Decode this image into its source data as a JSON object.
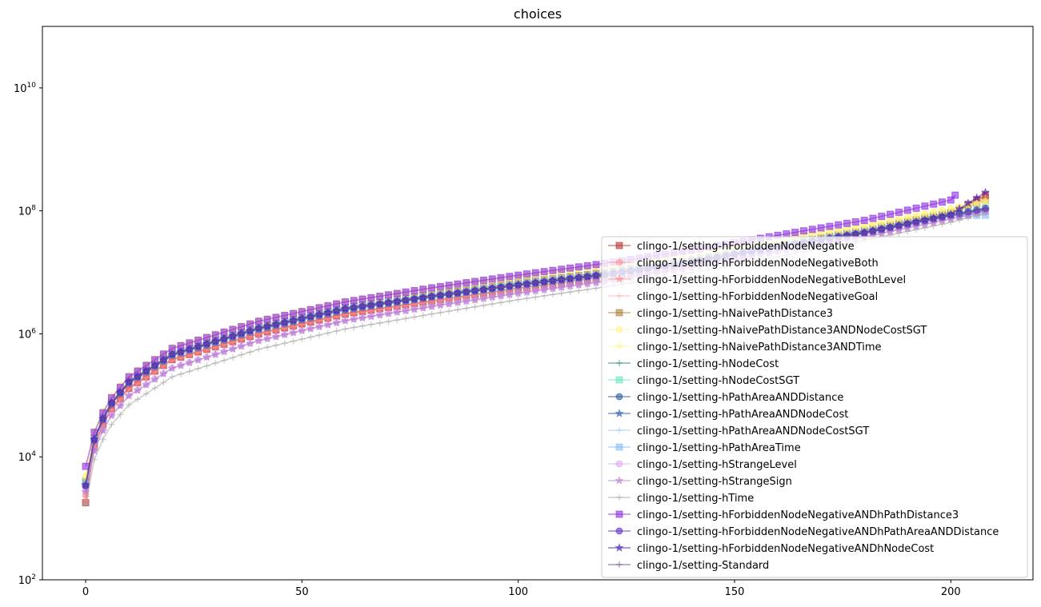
{
  "chart_data": {
    "type": "line",
    "title": "choices",
    "xlabel": "",
    "ylabel": "",
    "yscale": "log",
    "xlim": [
      -10,
      219
    ],
    "ylim": [
      100,
      100000000000
    ],
    "x_ticks": [
      0,
      50,
      100,
      150,
      200
    ],
    "x_tick_labels": [
      "0",
      "50",
      "100",
      "150",
      "200"
    ],
    "y_ticks": [
      100,
      10000,
      1000000,
      100000000,
      10000000000
    ],
    "y_tick_labels": [
      {
        "base": "10",
        "exp": "2"
      },
      {
        "base": "10",
        "exp": "4"
      },
      {
        "base": "10",
        "exp": "6"
      },
      {
        "base": "10",
        "exp": "8"
      },
      {
        "base": "10",
        "exp": "10"
      }
    ],
    "grid": false,
    "legend_position": "lower-right",
    "series": [
      {
        "name": "clingo-1/setting-hForbiddenNodeNegative",
        "color": "#b22222",
        "marker": "square",
        "alpha": 0.55,
        "x": [
          0,
          2,
          5,
          10,
          20,
          40,
          60,
          80,
          100,
          120,
          140,
          160,
          180,
          200,
          208
        ],
        "values": [
          1800,
          15000,
          50000,
          130000,
          380000,
          1000000,
          2100000,
          3400000,
          5500000,
          8500000,
          14000000,
          26000000,
          45000000,
          90000000,
          180000000
        ]
      },
      {
        "name": "clingo-1/setting-hForbiddenNodeNegativeBoth",
        "color": "#ff6b6b",
        "marker": "circle",
        "alpha": 0.35,
        "x": [
          0,
          2,
          5,
          10,
          20,
          40,
          60,
          80,
          100,
          120,
          140,
          160,
          180,
          200,
          208
        ],
        "values": [
          2500,
          16000,
          52000,
          135000,
          390000,
          1050000,
          2150000,
          3450000,
          5600000,
          8600000,
          14500000,
          27000000,
          46000000,
          92000000,
          170000000
        ]
      },
      {
        "name": "clingo-1/setting-hForbiddenNodeNegativeBothLevel",
        "color": "#ff5c5c",
        "marker": "star",
        "alpha": 0.35,
        "x": [
          0,
          2,
          5,
          10,
          20,
          40,
          60,
          80,
          100,
          120,
          140,
          160,
          180,
          200,
          208
        ],
        "values": [
          2200,
          15500,
          51000,
          132000,
          385000,
          1020000,
          2120000,
          3420000,
          5550000,
          8550000,
          14200000,
          26500000,
          45500000,
          91000000,
          175000000
        ]
      },
      {
        "name": "clingo-1/setting-hForbiddenNodeNegativeGoal",
        "color": "#ff9e9e",
        "marker": "plus",
        "alpha": 0.45,
        "x": [
          0,
          2,
          5,
          10,
          20,
          40,
          60,
          80,
          100,
          120,
          140,
          160,
          180,
          200,
          208
        ],
        "values": [
          2000,
          14000,
          48000,
          125000,
          370000,
          990000,
          2050000,
          3350000,
          5450000,
          8400000,
          13800000,
          25500000,
          44000000,
          88000000,
          165000000
        ]
      },
      {
        "name": "clingo-1/setting-hNaivePathDistance3",
        "color": "#a07828",
        "marker": "square",
        "alpha": 0.55,
        "x": [
          0,
          2,
          5,
          10,
          20,
          40,
          60,
          80,
          100,
          120,
          140,
          160,
          180,
          200,
          208
        ],
        "values": [
          4000,
          20000,
          65000,
          170000,
          480000,
          1300000,
          2700000,
          4300000,
          6800000,
          10000000,
          16000000,
          28000000,
          48000000,
          95000000,
          150000000
        ]
      },
      {
        "name": "clingo-1/setting-hNaivePathDistance3ANDNodeCostSGT",
        "color": "#fff06e",
        "marker": "circle",
        "alpha": 0.45,
        "x": [
          0,
          2,
          5,
          10,
          20,
          40,
          60,
          80,
          100,
          120,
          140,
          160,
          180,
          200,
          208
        ],
        "values": [
          5000,
          26000,
          80000,
          210000,
          600000,
          1650000,
          3400000,
          5600000,
          8600000,
          13000000,
          21000000,
          35000000,
          58000000,
          110000000,
          140000000
        ]
      },
      {
        "name": "clingo-1/setting-hNaivePathDistance3ANDTime",
        "color": "#fff488",
        "marker": "star",
        "alpha": 0.45,
        "x": [
          0,
          2,
          5,
          10,
          20,
          40,
          60,
          80,
          100,
          120,
          140,
          160,
          180,
          200,
          208
        ],
        "values": [
          4800,
          25000,
          78000,
          205000,
          590000,
          1620000,
          3350000,
          5500000,
          8500000,
          12800000,
          20500000,
          34000000,
          57000000,
          108000000,
          145000000
        ]
      },
      {
        "name": "clingo-1/setting-hNodeCost",
        "color": "#2e8b6e",
        "marker": "plus",
        "alpha": 0.6,
        "x": [
          0,
          2,
          5,
          10,
          20,
          40,
          60,
          80,
          100,
          120,
          140,
          160,
          180,
          200,
          208
        ],
        "values": [
          3500,
          19000,
          60000,
          160000,
          450000,
          1200000,
          2500000,
          4000000,
          6200000,
          9200000,
          14800000,
          26000000,
          44000000,
          85000000,
          110000000
        ]
      },
      {
        "name": "clingo-1/setting-hNodeCostSGT",
        "color": "#56e0b8",
        "marker": "square",
        "alpha": 0.5,
        "x": [
          0,
          2,
          5,
          10,
          20,
          40,
          60,
          80,
          100,
          120,
          140,
          160,
          180,
          200,
          208
        ],
        "values": [
          3700,
          19500,
          62000,
          165000,
          460000,
          1230000,
          2550000,
          4050000,
          6300000,
          9300000,
          15000000,
          26500000,
          44500000,
          86000000,
          112000000
        ]
      },
      {
        "name": "clingo-1/setting-hPathAreaANDDistance",
        "color": "#1f4e8c",
        "marker": "circle",
        "alpha": 0.55,
        "x": [
          0,
          2,
          5,
          10,
          20,
          40,
          60,
          80,
          100,
          120,
          140,
          160,
          180,
          200,
          208
        ],
        "values": [
          3300,
          18500,
          59000,
          158000,
          445000,
          1180000,
          2450000,
          3950000,
          6100000,
          9000000,
          14500000,
          25500000,
          43000000,
          82000000,
          100000000
        ]
      },
      {
        "name": "clingo-1/setting-hPathAreaANDNodeCost",
        "color": "#2a5aa8",
        "marker": "star",
        "alpha": 0.6,
        "x": [
          0,
          2,
          5,
          10,
          20,
          40,
          60,
          80,
          100,
          120,
          140,
          160,
          180,
          200,
          208
        ],
        "values": [
          3400,
          18800,
          59500,
          159000,
          448000,
          1190000,
          2470000,
          3970000,
          6150000,
          9050000,
          14600000,
          25700000,
          43200000,
          83000000,
          105000000
        ]
      },
      {
        "name": "clingo-1/setting-hPathAreaANDNodeCostSGT",
        "color": "#8cc0f5",
        "marker": "plus",
        "alpha": 0.5,
        "x": [
          0,
          2,
          5,
          10,
          20,
          40,
          60,
          80,
          100,
          120,
          140,
          160,
          180,
          200,
          208
        ],
        "values": [
          3600,
          19200,
          61000,
          162000,
          455000,
          1210000,
          2520000,
          4020000,
          6250000,
          9250000,
          14900000,
          26200000,
          44200000,
          84000000,
          90000000
        ]
      },
      {
        "name": "clingo-1/setting-hPathAreaTime",
        "color": "#6fb4f5",
        "marker": "square",
        "alpha": 0.5,
        "x": [
          0,
          2,
          5,
          10,
          20,
          40,
          60,
          80,
          100,
          120,
          140,
          160,
          180,
          200,
          208
        ],
        "values": [
          3550,
          19100,
          60500,
          161000,
          452000,
          1205000,
          2510000,
          4010000,
          6220000,
          9220000,
          14850000,
          26100000,
          44100000,
          83500000,
          85000000
        ]
      },
      {
        "name": "clingo-1/setting-hStrangeLevel",
        "color": "#d9a0f0",
        "marker": "circle",
        "alpha": 0.5,
        "x": [
          0,
          2,
          5,
          10,
          20,
          40,
          60,
          80,
          100,
          120,
          140,
          160,
          180,
          200,
          208
        ],
        "values": [
          2800,
          13000,
          40000,
          100000,
          280000,
          780000,
          1650000,
          2800000,
          4600000,
          7200000,
          12000000,
          22000000,
          38000000,
          75000000,
          95000000
        ]
      },
      {
        "name": "clingo-1/setting-hStrangeSign",
        "color": "#b070c8",
        "marker": "star",
        "alpha": 0.5,
        "x": [
          0,
          2,
          5,
          10,
          20,
          40,
          60,
          80,
          100,
          120,
          140,
          160,
          180,
          200,
          208
        ],
        "values": [
          2700,
          12500,
          39000,
          98000,
          275000,
          770000,
          1630000,
          2780000,
          4550000,
          7150000,
          11900000,
          21800000,
          37500000,
          74000000,
          98000000
        ]
      },
      {
        "name": "clingo-1/setting-hTime",
        "color": "#a8a8a8",
        "marker": "plus",
        "alpha": 0.6,
        "x": [
          0,
          2,
          5,
          10,
          20,
          40,
          60,
          80,
          100,
          120,
          140,
          160,
          180,
          200,
          208
        ],
        "values": [
          1700,
          9000,
          28000,
          70000,
          200000,
          560000,
          1200000,
          2100000,
          3600000,
          5800000,
          9800000,
          18000000,
          33000000,
          65000000,
          92000000
        ]
      },
      {
        "name": "clingo-1/setting-hForbiddenNodeNegativeANDhPathDistance3",
        "color": "#8a2be2",
        "marker": "square",
        "alpha": 0.6,
        "x": [
          0,
          2,
          5,
          10,
          20,
          40,
          60,
          80,
          100,
          120,
          140,
          160,
          180,
          200,
          201
        ],
        "values": [
          7000,
          25000,
          75000,
          200000,
          580000,
          1600000,
          3300000,
          5600000,
          9000000,
          14000000,
          23000000,
          40000000,
          70000000,
          150000000,
          180000000
        ]
      },
      {
        "name": "clingo-1/setting-hForbiddenNodeNegativeANDhPathAreaANDDistance",
        "color": "#5b2fc4",
        "marker": "circle",
        "alpha": 0.6,
        "x": [
          0,
          2,
          5,
          10,
          20,
          40,
          60,
          80,
          100,
          120,
          140,
          160,
          180,
          200,
          208
        ],
        "values": [
          3400,
          19000,
          61000,
          163000,
          460000,
          1230000,
          2550000,
          4050000,
          6250000,
          9250000,
          14800000,
          26000000,
          44000000,
          85000000,
          110000000
        ]
      },
      {
        "name": "clingo-1/setting-hForbiddenNodeNegativeANDhNodeCost",
        "color": "#4b1fb0",
        "marker": "star",
        "alpha": 0.6,
        "x": [
          0,
          2,
          5,
          10,
          20,
          40,
          60,
          80,
          100,
          120,
          140,
          160,
          180,
          200,
          208
        ],
        "values": [
          3500,
          19300,
          62000,
          165000,
          465000,
          1240000,
          2570000,
          4080000,
          6300000,
          9300000,
          14900000,
          26300000,
          44500000,
          88000000,
          200000000
        ]
      },
      {
        "name": "clingo-1/setting-Standard",
        "color": "#6e5590",
        "marker": "plus",
        "alpha": 0.6,
        "x": [
          0,
          2,
          5,
          10,
          20,
          40,
          60,
          80,
          100,
          120,
          140,
          160,
          180,
          200,
          208
        ],
        "values": [
          3450,
          19150,
          61500,
          164000,
          462000,
          1235000,
          2560000,
          4060000,
          6270000,
          9270000,
          14850000,
          26150000,
          44300000,
          86500000,
          108000000
        ]
      }
    ]
  }
}
